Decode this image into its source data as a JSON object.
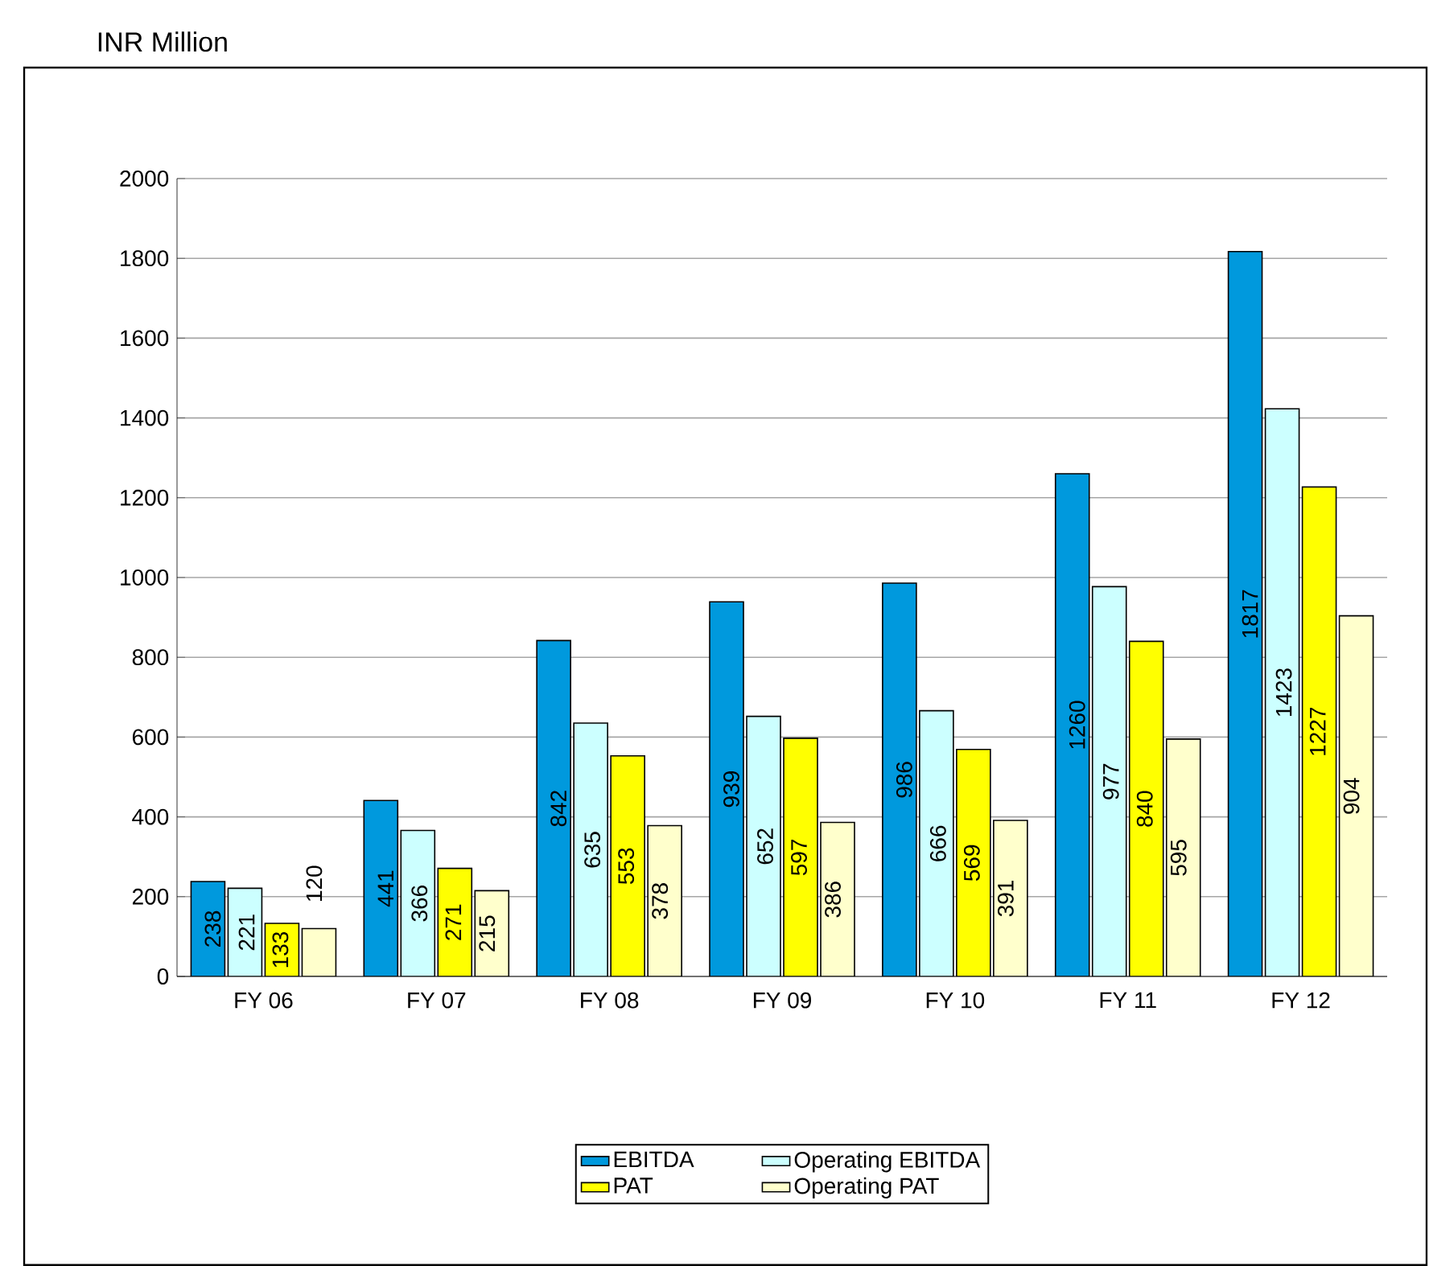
{
  "chart_data": {
    "type": "bar",
    "title": "INR Million",
    "categories": [
      "FY 06",
      "FY 07",
      "FY 08",
      "FY 09",
      "FY 10",
      "FY 11",
      "FY 12"
    ],
    "series": [
      {
        "name": "EBITDA",
        "color": "#0099dd",
        "values": [
          238,
          441,
          842,
          939,
          986,
          1260,
          1817
        ]
      },
      {
        "name": "Operating EBITDA",
        "color": "#ccffff",
        "values": [
          221,
          366,
          635,
          652,
          666,
          977,
          1423
        ]
      },
      {
        "name": "PAT",
        "color": "#ffff00",
        "values": [
          133,
          271,
          553,
          597,
          569,
          840,
          1227
        ]
      },
      {
        "name": "Operating PAT",
        "color": "#ffffcc",
        "values": [
          120,
          215,
          378,
          386,
          391,
          595,
          904
        ]
      }
    ],
    "ylim": [
      0,
      2000
    ],
    "yticks": [
      0,
      200,
      400,
      600,
      800,
      1000,
      1200,
      1400,
      1600,
      1800,
      2000
    ],
    "grid": "y",
    "legend": "bottom",
    "data_labels": true
  }
}
